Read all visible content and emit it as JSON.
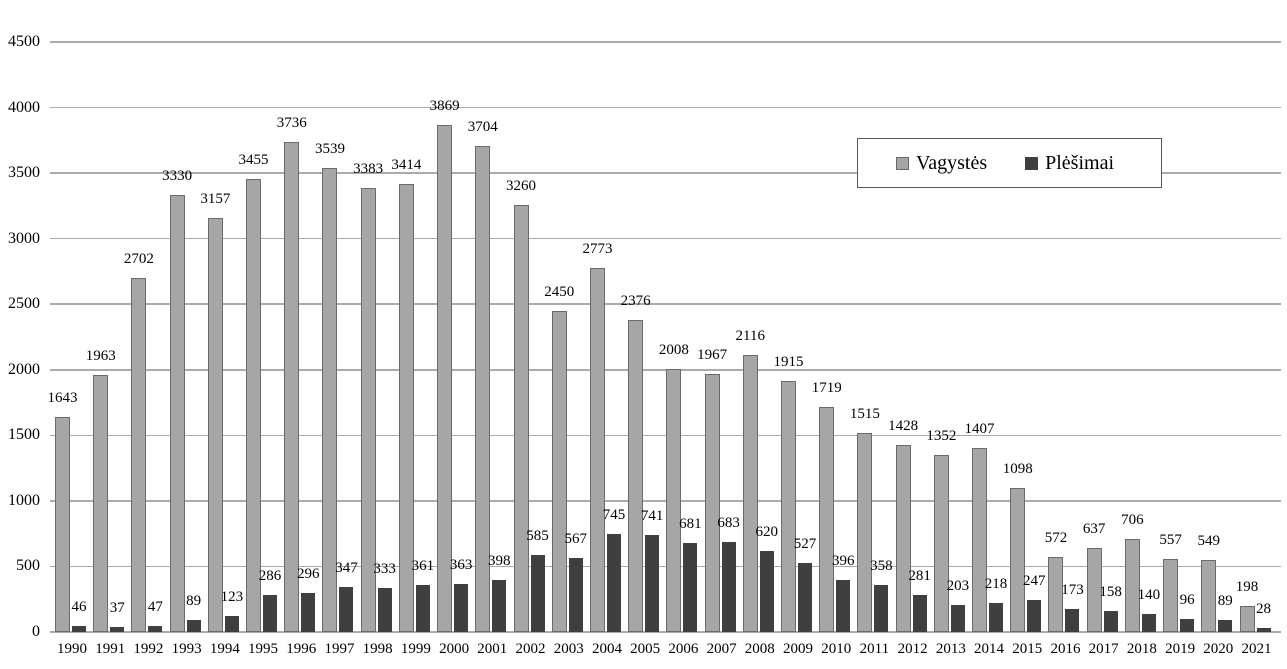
{
  "chart_data": {
    "type": "bar",
    "title": "",
    "xlabel": "",
    "ylabel": "",
    "ylim": [
      0,
      4500
    ],
    "ytick_step": 500,
    "yticks": [
      0,
      500,
      1000,
      1500,
      2000,
      2500,
      3000,
      3500,
      4000,
      4500
    ],
    "grid": true,
    "legend_position": "top-right",
    "data_labels": true,
    "categories": [
      "1990",
      "1991",
      "1992",
      "1993",
      "1994",
      "1995",
      "1996",
      "1997",
      "1998",
      "1999",
      "2000",
      "2001",
      "2002",
      "2003",
      "2004",
      "2005",
      "2006",
      "2007",
      "2008",
      "2009",
      "2010",
      "2011",
      "2012",
      "2013",
      "2014",
      "2015",
      "2016",
      "2017",
      "2018",
      "2019",
      "2020",
      "2021"
    ],
    "series": [
      {
        "name": "Vagystės",
        "color": "#a6a6a6",
        "border_color": "#6b6b6b",
        "values": [
          1643,
          1963,
          2702,
          3330,
          3157,
          3455,
          3736,
          3539,
          3383,
          3414,
          3869,
          3704,
          3260,
          2450,
          2773,
          2376,
          2008,
          1967,
          2116,
          1915,
          1719,
          1515,
          1428,
          1352,
          1407,
          1098,
          572,
          637,
          706,
          557,
          549,
          198
        ]
      },
      {
        "name": "Plėšimai",
        "color": "#3f3f3f",
        "border_color": "#3f3f3f",
        "values": [
          46,
          37,
          47,
          89,
          123,
          286,
          296,
          347,
          333,
          361,
          363,
          398,
          585,
          567,
          745,
          741,
          681,
          683,
          620,
          527,
          396,
          358,
          281,
          203,
          218,
          247,
          173,
          158,
          140,
          96,
          89,
          28
        ]
      }
    ],
    "colors": {
      "gridline": "#ababab",
      "axis_text": "#000000",
      "background": "#ffffff",
      "legend_border": "#595959"
    }
  }
}
